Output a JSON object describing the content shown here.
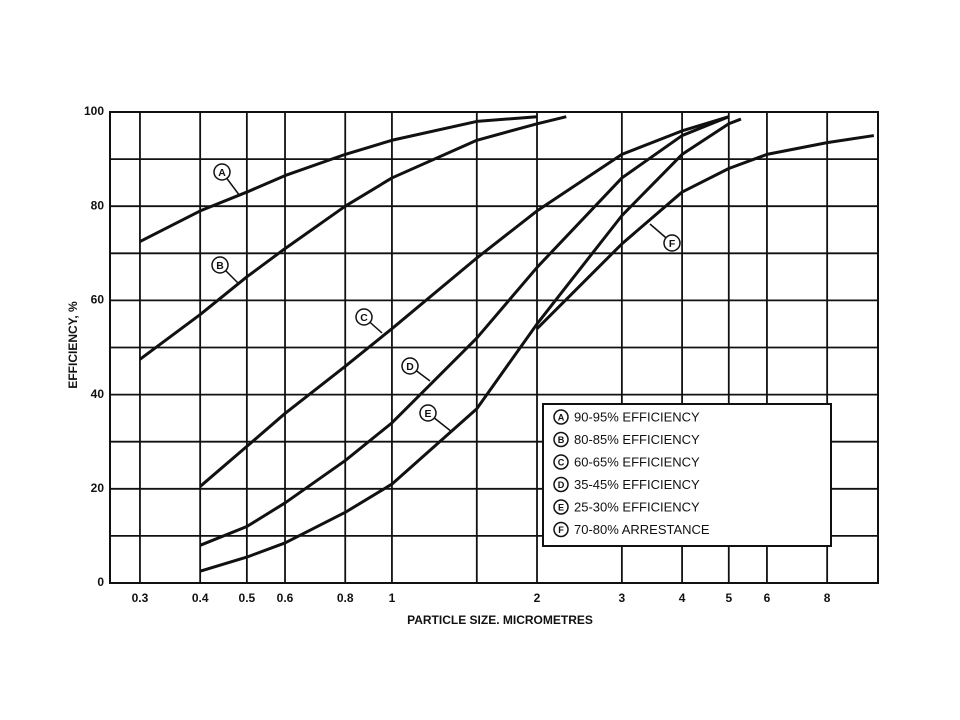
{
  "chart_data": {
    "type": "line",
    "xlabel": "PARTICLE SIZE. MICROMETRES",
    "ylabel": "EFFICIENCY, %",
    "xscale": "log",
    "xlim": [
      0.26,
      10.2
    ],
    "ylim": [
      0,
      100
    ],
    "xticks": [
      0.3,
      0.4,
      0.5,
      0.6,
      0.8,
      1,
      2,
      3,
      4,
      5,
      6,
      8
    ],
    "xminor": [
      1.5
    ],
    "yticks": [
      0,
      20,
      40,
      60,
      80,
      100
    ],
    "yminor": [
      10,
      30,
      50,
      70,
      90
    ],
    "grid": true,
    "series": [
      {
        "name": "A",
        "description": "90-95% EFFICIENCY",
        "color": "#111111",
        "x": [
          0.3,
          0.4,
          0.5,
          0.6,
          0.8,
          1,
          1.5,
          2
        ],
        "values": [
          72.5,
          79,
          83,
          86.5,
          91,
          94,
          98,
          99
        ]
      },
      {
        "name": "B",
        "description": "80-85% EFFICIENCY",
        "color": "#111111",
        "x": [
          0.3,
          0.4,
          0.5,
          0.6,
          0.8,
          1,
          1.5,
          2,
          2.3
        ],
        "values": [
          47.5,
          57,
          65,
          71,
          80,
          86,
          94,
          97.5,
          99
        ]
      },
      {
        "name": "C",
        "description": "60-65% EFFICIENCY",
        "color": "#111111",
        "x": [
          0.4,
          0.5,
          0.6,
          0.8,
          1,
          1.5,
          2,
          3,
          4,
          5
        ],
        "values": [
          20.5,
          29,
          36,
          46,
          54,
          69,
          79,
          91,
          96,
          99
        ]
      },
      {
        "name": "D",
        "description": "35-45% EFFICIENCY",
        "color": "#111111",
        "x": [
          0.4,
          0.5,
          0.6,
          0.8,
          1,
          1.5,
          2,
          3,
          4,
          5
        ],
        "values": [
          8,
          12,
          17,
          26,
          34,
          52,
          67,
          86,
          95,
          99
        ]
      },
      {
        "name": "E",
        "description": "25-30% EFFICIENCY",
        "color": "#111111",
        "x": [
          0.4,
          0.5,
          0.6,
          0.8,
          1,
          1.5,
          2,
          3,
          4,
          5,
          5.3
        ],
        "values": [
          2.5,
          5.5,
          8.5,
          15,
          21,
          37,
          55,
          78,
          91,
          97.5,
          98.5
        ]
      },
      {
        "name": "F",
        "description": "70-80% ARRESTANCE",
        "color": "#111111",
        "x": [
          2,
          3,
          4,
          5,
          6,
          8,
          10
        ],
        "values": [
          54,
          72,
          83,
          88,
          91,
          93.5,
          95
        ]
      }
    ]
  }
}
